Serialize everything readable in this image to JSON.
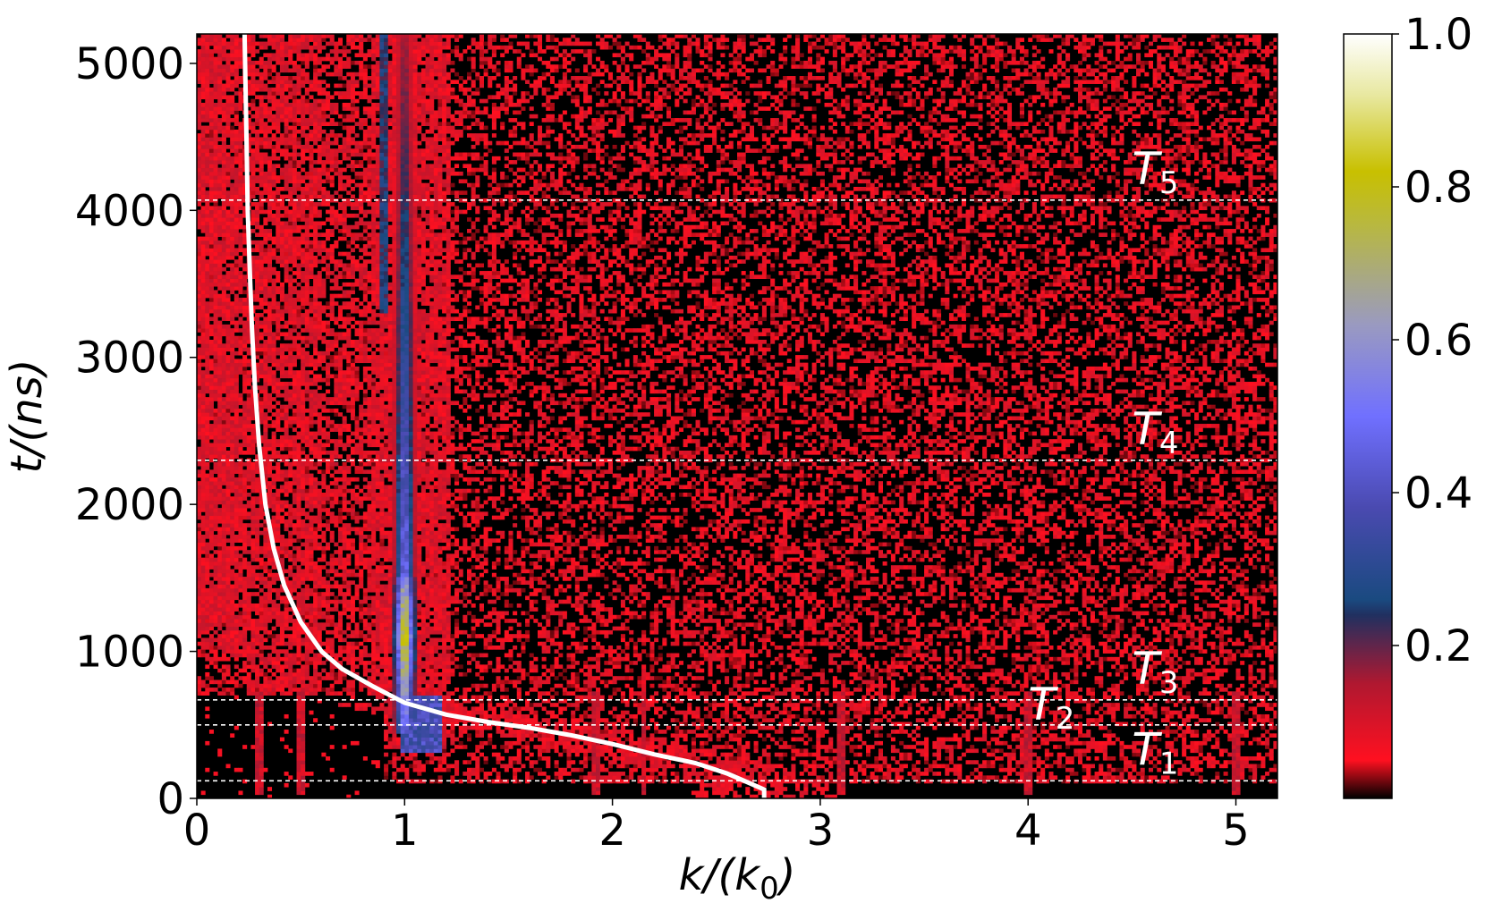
{
  "chart_data": {
    "type": "heatmap",
    "title": "",
    "xlabel": "k/(k_0)",
    "ylabel": "t/(ns)",
    "xlim": [
      0,
      5.2
    ],
    "ylim": [
      0,
      5200
    ],
    "x_ticks": [
      0,
      1,
      2,
      3,
      4,
      5
    ],
    "y_ticks": [
      0,
      1000,
      2000,
      3000,
      4000,
      5000
    ],
    "colorbar": {
      "range": [
        0,
        1.0
      ],
      "ticks": [
        "0.2",
        "0.4",
        "0.6",
        "0.8",
        "1.0"
      ],
      "tick_values": [
        0.2,
        0.4,
        0.6,
        0.8,
        1.0
      ],
      "colors": [
        {
          "v": 0.0,
          "c": "#000000"
        },
        {
          "v": 0.05,
          "c": "#ff1020"
        },
        {
          "v": 0.15,
          "c": "#b01830"
        },
        {
          "v": 0.24,
          "c": "#203060"
        },
        {
          "v": 0.26,
          "c": "#1a4a80"
        },
        {
          "v": 0.38,
          "c": "#4a4ab0"
        },
        {
          "v": 0.5,
          "c": "#7070ff"
        },
        {
          "v": 0.62,
          "c": "#9a9ac0"
        },
        {
          "v": 0.75,
          "c": "#b8b840"
        },
        {
          "v": 0.82,
          "c": "#c8c000"
        },
        {
          "v": 0.92,
          "c": "#e8e8a0"
        },
        {
          "v": 1.0,
          "c": "#ffffff"
        }
      ]
    },
    "time_markers": [
      {
        "name": "T_1",
        "label": "T",
        "sub": "1",
        "t": 120
      },
      {
        "name": "T_2",
        "label": "T",
        "sub": "2",
        "t": 500
      },
      {
        "name": "T_3",
        "label": "T",
        "sub": "3",
        "t": 670
      },
      {
        "name": "T_4",
        "label": "T",
        "sub": "4",
        "t": 2300
      },
      {
        "name": "T_5",
        "label": "T",
        "sub": "5",
        "t": 4070
      }
    ],
    "series": [
      {
        "type": "line",
        "color": "#ffffff",
        "points": [
          [
            2.73,
            0
          ],
          [
            2.73,
            60
          ],
          [
            2.65,
            110
          ],
          [
            2.55,
            170
          ],
          [
            2.4,
            240
          ],
          [
            2.2,
            300
          ],
          [
            2.0,
            370
          ],
          [
            1.8,
            430
          ],
          [
            1.6,
            480
          ],
          [
            1.4,
            520
          ],
          [
            1.2,
            570
          ],
          [
            1.0,
            650
          ],
          [
            0.85,
            760
          ],
          [
            0.7,
            880
          ],
          [
            0.6,
            1000
          ],
          [
            0.5,
            1200
          ],
          [
            0.42,
            1450
          ],
          [
            0.37,
            1700
          ],
          [
            0.33,
            2000
          ],
          [
            0.3,
            2400
          ],
          [
            0.28,
            2800
          ],
          [
            0.265,
            3200
          ],
          [
            0.255,
            3600
          ],
          [
            0.245,
            4000
          ],
          [
            0.24,
            4400
          ],
          [
            0.235,
            4800
          ],
          [
            0.23,
            5200
          ]
        ]
      }
    ],
    "features": [
      {
        "name": "bright band k≈1",
        "k_range": [
          0.95,
          1.05
        ],
        "t_range": [
          600,
          4500
        ],
        "peak": 1.0
      },
      {
        "name": "broad red region",
        "k_range": [
          0,
          1.2
        ],
        "t_range": [
          300,
          5200
        ],
        "level": 0.1
      },
      {
        "name": "harmonic streaks",
        "k": [
          2.15,
          3.1,
          4.0,
          5.0
        ],
        "t_range": [
          50,
          700
        ],
        "level": 0.1
      }
    ]
  }
}
